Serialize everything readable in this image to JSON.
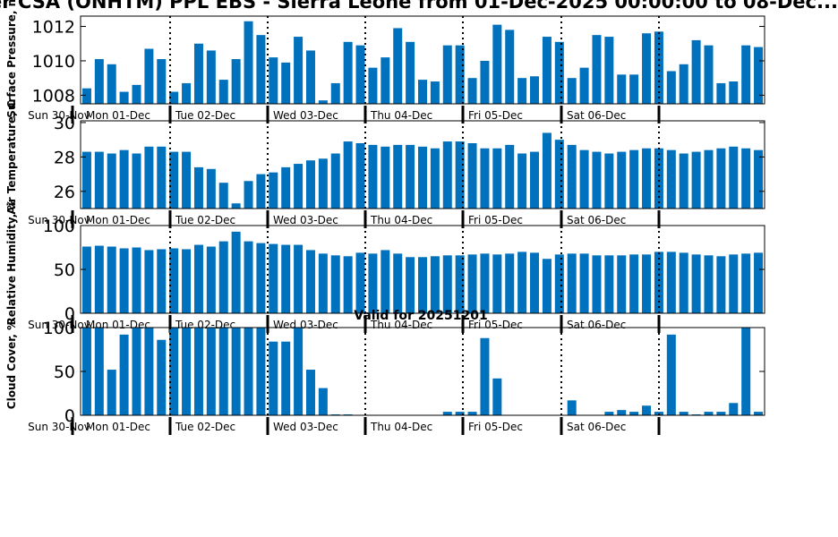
{
  "title": "...er CSA (ONHTM) PPL EBS - Sierra Leone from 01-Dec-2025 00:00:00 to 08-Dec...",
  "valid_label": "Valid for 20251201",
  "start_label": "Sun 30-Nov",
  "day_labels": [
    "Mon 01-Dec",
    "Tue 02-Dec",
    "Wed 03-Dec",
    "Thu 04-Dec",
    "Fri 05-Dec",
    "Sat 06-Dec"
  ],
  "colors": {
    "bar": "#0072bd",
    "axis": "#000000"
  },
  "chart_data": [
    {
      "type": "bar",
      "id": "pressure",
      "ylabel": "Surface Pressure, mb",
      "ylim": [
        1007.5,
        1012.6
      ],
      "yticks": [
        1008,
        1010,
        1012
      ],
      "tick_font": 19,
      "values": [
        1008.4,
        1010.1,
        1009.8,
        1008.2,
        1008.6,
        1010.7,
        1010.1,
        1008.2,
        1008.7,
        1011.0,
        1010.6,
        1008.9,
        1010.1,
        1012.3,
        1011.5,
        1010.2,
        1009.9,
        1011.4,
        1010.6,
        1007.7,
        1008.7,
        1011.1,
        1010.9,
        1009.6,
        1010.2,
        1011.9,
        1011.1,
        1008.9,
        1008.8,
        1010.9,
        1010.9,
        1009.0,
        1010.0,
        1012.1,
        1011.8,
        1009.0,
        1009.1,
        1011.4,
        1011.1,
        1009.0,
        1009.6,
        1011.5,
        1011.4,
        1009.2,
        1009.2,
        1011.6,
        1011.7,
        1009.4,
        1009.8,
        1011.2,
        1010.9,
        1008.7,
        1008.8,
        1010.9,
        1010.8
      ]
    },
    {
      "type": "bar",
      "id": "temperature",
      "ylabel": "Air Temperature, C",
      "ylim": [
        25,
        30.1
      ],
      "yticks": [
        26,
        28,
        30
      ],
      "tick_font": 19,
      "values": [
        28.3,
        28.3,
        28.2,
        28.4,
        28.2,
        28.6,
        28.6,
        28.3,
        28.3,
        27.4,
        27.3,
        26.5,
        25.3,
        26.6,
        27.0,
        27.1,
        27.4,
        27.6,
        27.8,
        27.9,
        28.2,
        28.9,
        28.8,
        28.7,
        28.6,
        28.7,
        28.7,
        28.6,
        28.5,
        28.9,
        28.9,
        28.8,
        28.5,
        28.5,
        28.7,
        28.2,
        28.3,
        29.4,
        29.0,
        28.7,
        28.4,
        28.3,
        28.2,
        28.3,
        28.4,
        28.5,
        28.5,
        28.4,
        28.2,
        28.3,
        28.4,
        28.5,
        28.6,
        28.5,
        28.4
      ]
    },
    {
      "type": "bar",
      "id": "humidity",
      "ylabel": "Relative Humidity, %",
      "ylim": [
        0,
        100
      ],
      "yticks": [
        0,
        50,
        100
      ],
      "tick_font": 19,
      "values": [
        76,
        77,
        76,
        74,
        75,
        72,
        73,
        74,
        73,
        78,
        76,
        82,
        93,
        82,
        80,
        79,
        78,
        78,
        72,
        68,
        66,
        65,
        69,
        68,
        72,
        68,
        64,
        64,
        65,
        66,
        66,
        67,
        68,
        67,
        68,
        70,
        69,
        62,
        67,
        68,
        68,
        66,
        66,
        66,
        67,
        67,
        70,
        70,
        69,
        67,
        66,
        65,
        67,
        68,
        69
      ]
    },
    {
      "type": "bar",
      "id": "cloud",
      "ylabel": "Cloud Cover, %",
      "ylim": [
        0,
        100
      ],
      "yticks": [
        0,
        50,
        100
      ],
      "tick_font": 19,
      "values": [
        100,
        100,
        52,
        92,
        100,
        100,
        86,
        100,
        100,
        100,
        100,
        100,
        100,
        100,
        100,
        84,
        84,
        100,
        52,
        31,
        1,
        1,
        0,
        0,
        0,
        0,
        0,
        0,
        0,
        4,
        4,
        4,
        88,
        42,
        0,
        0,
        0,
        0,
        0,
        17,
        0,
        0,
        4,
        6,
        4,
        11,
        4,
        92,
        4,
        1,
        4,
        4,
        14,
        100,
        4
      ]
    }
  ]
}
